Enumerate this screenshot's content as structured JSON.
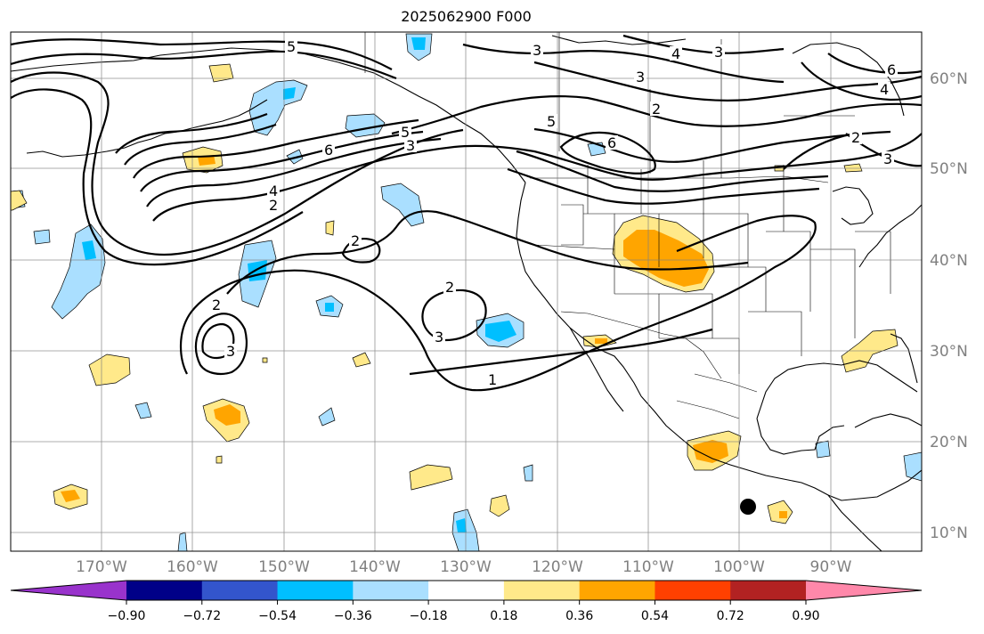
{
  "title": "2025062900 F000",
  "lat_labels": [
    "60°N",
    "50°N",
    "40°N",
    "30°N",
    "20°N",
    "10°N"
  ],
  "lon_labels": [
    "170°W",
    "160°W",
    "150°W",
    "140°W",
    "130°W",
    "120°W",
    "110°W",
    "100°W",
    "90°W"
  ],
  "colorbar": {
    "colors": [
      "#9933cc",
      "#000088",
      "#3355cc",
      "#00bfff",
      "#aadfff",
      "#ffffff",
      "#ffe98a",
      "#ffa500",
      "#ff4000",
      "#b22222",
      "#ff88aa"
    ],
    "tick_labels": [
      "−0.90",
      "−0.72",
      "−0.54",
      "−0.36",
      "−0.18",
      "0.18",
      "0.36",
      "0.54",
      "0.72",
      "0.90"
    ]
  },
  "contour_labels": [
    "5",
    "3",
    "4",
    "3",
    "6",
    "4",
    "3",
    "2",
    "5",
    "6",
    "2",
    "3",
    "6",
    "5",
    "3",
    "4",
    "2",
    "2",
    "2",
    "3",
    "2",
    "3",
    "1"
  ],
  "station_marker": "black-dot"
}
